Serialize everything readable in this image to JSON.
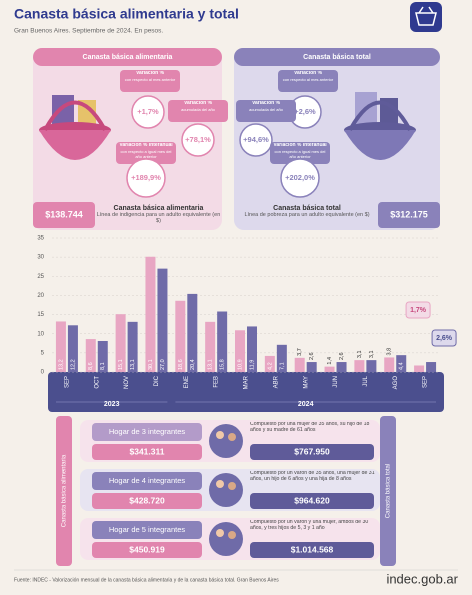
{
  "header": {
    "title": "Canasta básica alimentaria y total",
    "subtitle": "Gran Buenos Aires. Septiembre de 2024. En pesos."
  },
  "panels": [
    {
      "title": "Canasta básica alimentaria",
      "bubbles": [
        {
          "label": "Variación %",
          "note": "con respecto al mes anterior",
          "value": "+1,7%"
        },
        {
          "label": "Variación %",
          "note": "acumulada del año",
          "value": "+78,1%"
        },
        {
          "label": "Variación % interanual",
          "note": "con respecto a igual mes del año anterior",
          "value": "+189,9%"
        }
      ],
      "amount": "$138.744",
      "line_title": "Canasta básica alimentaria",
      "line_desc": "Línea de indigencia para un adulto equivalente (en $)"
    },
    {
      "title": "Canasta básica total",
      "bubbles": [
        {
          "label": "Variación %",
          "note": "con respecto al mes anterior",
          "value": "+2,6%"
        },
        {
          "label": "Variación %",
          "note": "acumulada del año",
          "value": "+94,6%"
        },
        {
          "label": "Variación % interanual",
          "note": "con respecto a igual mes del año anterior",
          "value": "+202,0%"
        }
      ],
      "amount": "$312.175",
      "line_title": "Canasta básica total",
      "line_desc": "Línea de pobreza para un adulto equivalente (en $)"
    }
  ],
  "chart_data": {
    "type": "bar",
    "categories": [
      "SEP",
      "OCT",
      "NOV",
      "DIC",
      "ENE",
      "FEB",
      "MAR",
      "ABR",
      "MAY",
      "JUN",
      "JUL",
      "AGO",
      "SEP"
    ],
    "year_labels": [
      "2023",
      "2024"
    ],
    "series": [
      {
        "color": "#e8a6c3",
        "values": [
          13.2,
          8.6,
          15.1,
          30.1,
          18.6,
          13.1,
          10.9,
          4.2,
          3.7,
          1.4,
          3.1,
          3.8,
          1.7
        ],
        "value_labels": [
          "13,2",
          "8,6",
          "15,1",
          "30,1",
          "18,6",
          "13,1",
          "10,9",
          "4,2",
          "3,7",
          "1,4",
          "3,1",
          "3,8",
          "1,7%"
        ]
      },
      {
        "color": "#6f6ba8",
        "values": [
          12.2,
          8.1,
          13.1,
          27.0,
          20.4,
          15.8,
          11.9,
          7.1,
          2.6,
          2.6,
          3.1,
          4.4,
          2.6
        ],
        "value_labels": [
          "12,2",
          "8,1",
          "13,1",
          "27,0",
          "20,4",
          "15,8",
          "11,9",
          "7,1",
          "2,6",
          "2,6",
          "3,1",
          "4,4",
          "2,6%"
        ]
      }
    ],
    "ylim": [
      0,
      35
    ],
    "yticks": [
      0,
      5,
      10,
      15,
      20,
      25,
      30,
      35
    ],
    "grid": true
  },
  "side_labels": [
    "Canasta básica alimentaria",
    "Canasta básica total"
  ],
  "households": [
    {
      "name": "Hogar de 3 integrantes",
      "cba": "$341.311",
      "cbt": "$767.950",
      "desc": "Compuesto por una mujer de 35 años, su hijo de 18 años y su madre de 61 años"
    },
    {
      "name": "Hogar de 4 integrantes",
      "cba": "$428.720",
      "cbt": "$964.620",
      "desc": "Compuesto por un varón de 35 años, una mujer de 31 años, un hijo de 6 años y una hija de 8 años"
    },
    {
      "name": "Hogar de 5 integrantes",
      "cba": "$450.919",
      "cbt": "$1.014.568",
      "desc": "Compuesto por un varón y una mujer, ambos de 30 años, y tres hijos de 5, 3 y 1 año"
    }
  ],
  "footer": {
    "source": "Fuente: INDEC - Valorización mensual de la canasta básica alimentaria y de la canasta básica total. Gran Buenos Aires",
    "logo": "indec.gob.ar"
  }
}
